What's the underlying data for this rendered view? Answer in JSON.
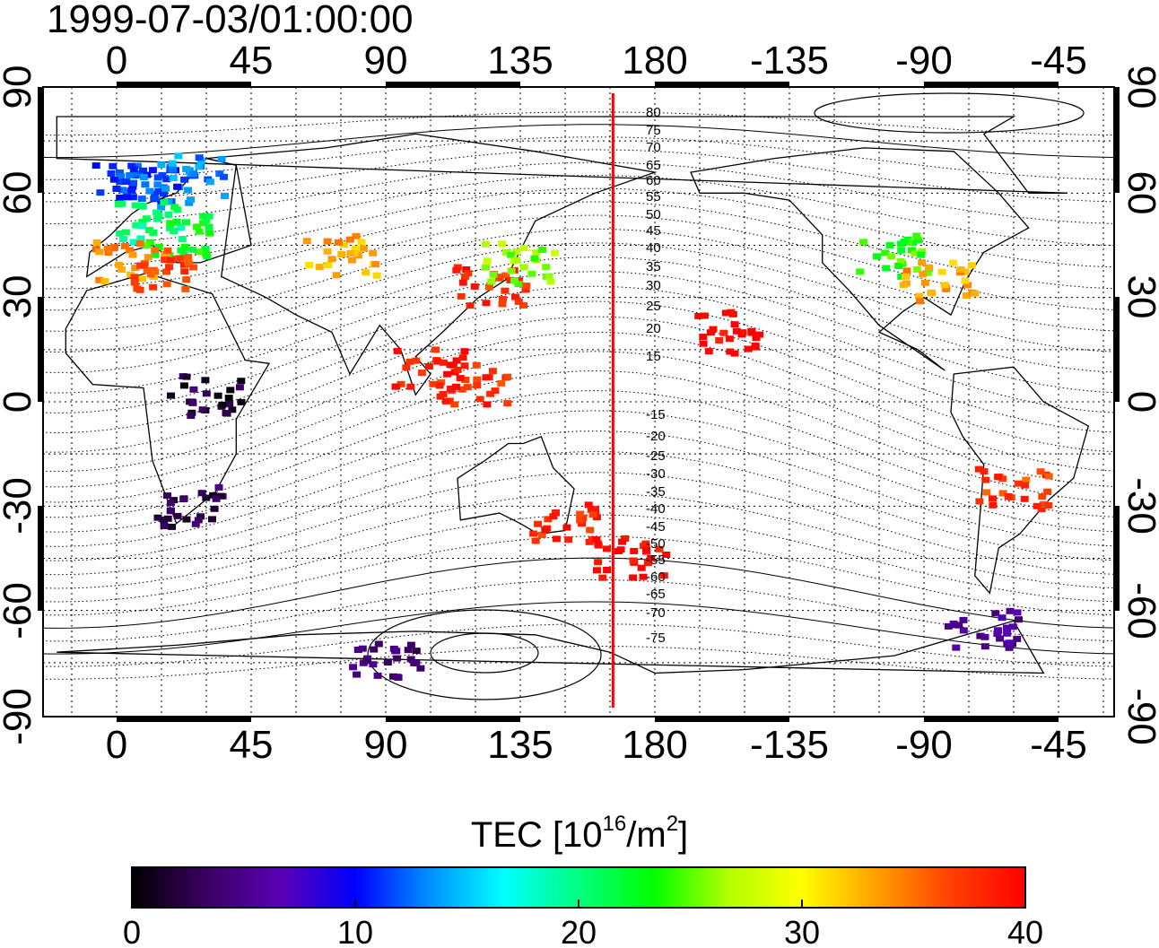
{
  "title": "1999-07-03/01:00:00",
  "top_lon_ticks": [
    "0",
    "45",
    "90",
    "135",
    "180",
    "-135",
    "-90",
    "-45"
  ],
  "bottom_lon_ticks": [
    "0",
    "45",
    "90",
    "135",
    "180",
    "-135",
    "-90",
    "-45"
  ],
  "left_lat_ticks": [
    "90",
    "60",
    "30",
    "0",
    "-30",
    "-60",
    "-90"
  ],
  "right_lat_ticks": [
    "90",
    "60",
    "30",
    "0",
    "-30",
    "-60",
    "-90"
  ],
  "contour_labels_north": [
    "80",
    "75",
    "70",
    "65",
    "60",
    "55",
    "50",
    "45",
    "40",
    "35",
    "30",
    "25",
    "20",
    "15"
  ],
  "contour_labels_south": [
    "-15",
    "-20",
    "-25",
    "-30",
    "-35",
    "-40",
    "-45",
    "-50",
    "-55",
    "-60",
    "-65",
    "-70",
    "-75"
  ],
  "colorbar": {
    "title_prefix": "TEC  [10",
    "title_exp1": "16",
    "title_mid": "/m",
    "title_exp2": "2",
    "title_suffix": "]",
    "tick_labels": [
      "0",
      "10",
      "20",
      "30",
      "40"
    ],
    "range": [
      0,
      40
    ],
    "colors": [
      "#000000",
      "#3a0060",
      "#5a00b4",
      "#0000ff",
      "#0090ff",
      "#00ffff",
      "#00ff80",
      "#00ff00",
      "#b0ff00",
      "#ffff00",
      "#ffa000",
      "#ff4000",
      "#ff0000"
    ]
  },
  "map_data": {
    "lon_range": [
      -25,
      155
    ],
    "lat_range": [
      -90,
      90
    ],
    "terminator_lon": 166,
    "terminator_color": "#ff0000",
    "tec_samples": [
      {
        "lon": 5,
        "lat": 63,
        "tec": 11
      },
      {
        "lon": 15,
        "lat": 62,
        "tec": 12
      },
      {
        "lon": 25,
        "lat": 65,
        "tec": 13
      },
      {
        "lon": 10,
        "lat": 52,
        "tec": 20
      },
      {
        "lon": 20,
        "lat": 48,
        "tec": 23
      },
      {
        "lon": 5,
        "lat": 40,
        "tec": 34
      },
      {
        "lon": 15,
        "lat": 38,
        "tec": 37
      },
      {
        "lon": 75,
        "lat": 42,
        "tec": 33
      },
      {
        "lon": 125,
        "lat": 33,
        "tec": 38
      },
      {
        "lon": 135,
        "lat": 40,
        "tec": 26
      },
      {
        "lon": 120,
        "lat": 5,
        "tec": 38
      },
      {
        "lon": 105,
        "lat": 10,
        "tec": 39
      },
      {
        "lon": 150,
        "lat": -35,
        "tec": 38
      },
      {
        "lon": 172,
        "lat": -45,
        "tec": 40
      },
      {
        "lon": 205,
        "lat": 20,
        "tec": 40
      },
      {
        "lon": -100,
        "lat": 42,
        "tec": 24
      },
      {
        "lon": -85,
        "lat": 35,
        "tec": 33
      },
      {
        "lon": -60,
        "lat": -25,
        "tec": 37
      },
      {
        "lon": 25,
        "lat": -30,
        "tec": 3
      },
      {
        "lon": 30,
        "lat": 2,
        "tec": 2
      },
      {
        "lon": 90,
        "lat": -75,
        "tec": 4
      },
      {
        "lon": -70,
        "lat": -65,
        "tec": 5
      }
    ]
  }
}
